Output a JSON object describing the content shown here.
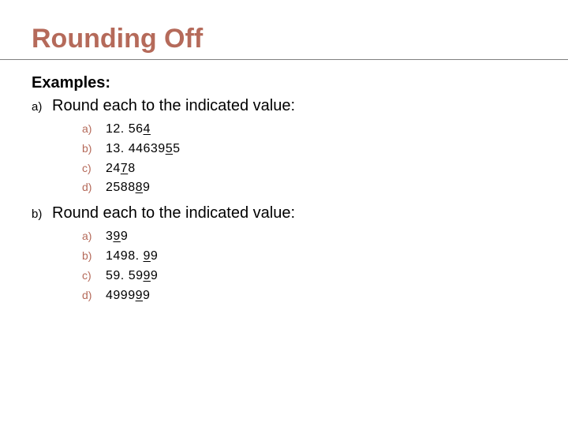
{
  "colors": {
    "title": "#b56a5a",
    "sub_marker": "#b56a5a",
    "text": "#000000",
    "rule": "#808080",
    "background": "#ffffff"
  },
  "typography": {
    "title_fontsize": 34,
    "heading_fontsize": 20,
    "body_fontsize": 20,
    "sub_fontsize": 16,
    "font_family": "Arial"
  },
  "title": "Rounding Off",
  "examples_label": "Examples:",
  "sections": [
    {
      "marker": "a)",
      "text": "Round each to the indicated value:",
      "items": [
        {
          "marker": "a)",
          "pre": "12. 56",
          "u": "4",
          "post": ""
        },
        {
          "marker": "b)",
          "pre": "13. 44639",
          "u": "5",
          "post": "5"
        },
        {
          "marker": "c)",
          "pre": "24",
          "u": "7",
          "post": "8"
        },
        {
          "marker": "d)",
          "pre": "2588",
          "u": "8",
          "post": "9"
        }
      ]
    },
    {
      "marker": "b)",
      "text": "Round each to the indicated value:",
      "items": [
        {
          "marker": "a)",
          "pre": "3",
          "u": "9",
          "post": "9"
        },
        {
          "marker": "b)",
          "pre": "1498. ",
          "u": "9",
          "post": "9"
        },
        {
          "marker": "c)",
          "pre": "59. 59",
          "u": "9",
          "post": "9"
        },
        {
          "marker": "d)",
          "pre": "4999",
          "u": "9",
          "post": "9"
        }
      ]
    }
  ]
}
